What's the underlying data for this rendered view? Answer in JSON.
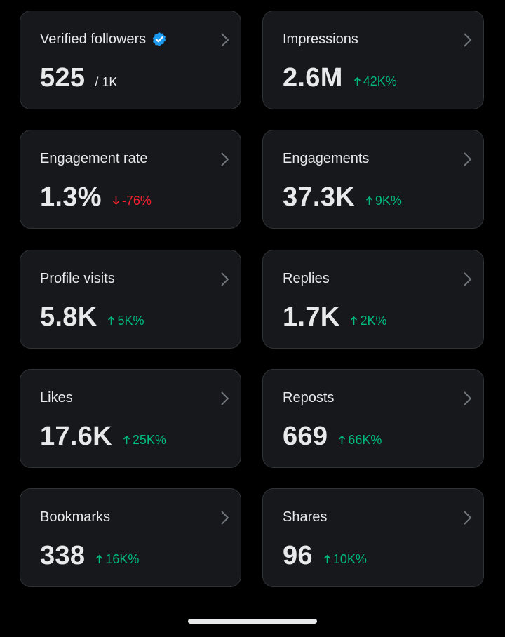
{
  "colors": {
    "background": "#000000",
    "card": "#16181c",
    "border": "#2f3336",
    "up": "#00ba7c",
    "down": "#f4212e",
    "verified": "#1d9bf0"
  },
  "metrics": [
    {
      "label": "Verified followers",
      "value": "525",
      "denominator": "/ 1K",
      "change": "",
      "direction": "",
      "icon": "verified-badge-icon"
    },
    {
      "label": "Impressions",
      "value": "2.6M",
      "change": "42K%",
      "direction": "up"
    },
    {
      "label": "Engagement rate",
      "value": "1.3%",
      "change": "-76%",
      "direction": "down"
    },
    {
      "label": "Engagements",
      "value": "37.3K",
      "change": "9K%",
      "direction": "up"
    },
    {
      "label": "Profile visits",
      "value": "5.8K",
      "change": "5K%",
      "direction": "up"
    },
    {
      "label": "Replies",
      "value": "1.7K",
      "change": "2K%",
      "direction": "up"
    },
    {
      "label": "Likes",
      "value": "17.6K",
      "change": "25K%",
      "direction": "up"
    },
    {
      "label": "Reposts",
      "value": "669",
      "change": "66K%",
      "direction": "up"
    },
    {
      "label": "Bookmarks",
      "value": "338",
      "change": "16K%",
      "direction": "up"
    },
    {
      "label": "Shares",
      "value": "96",
      "change": "10K%",
      "direction": "up"
    }
  ]
}
